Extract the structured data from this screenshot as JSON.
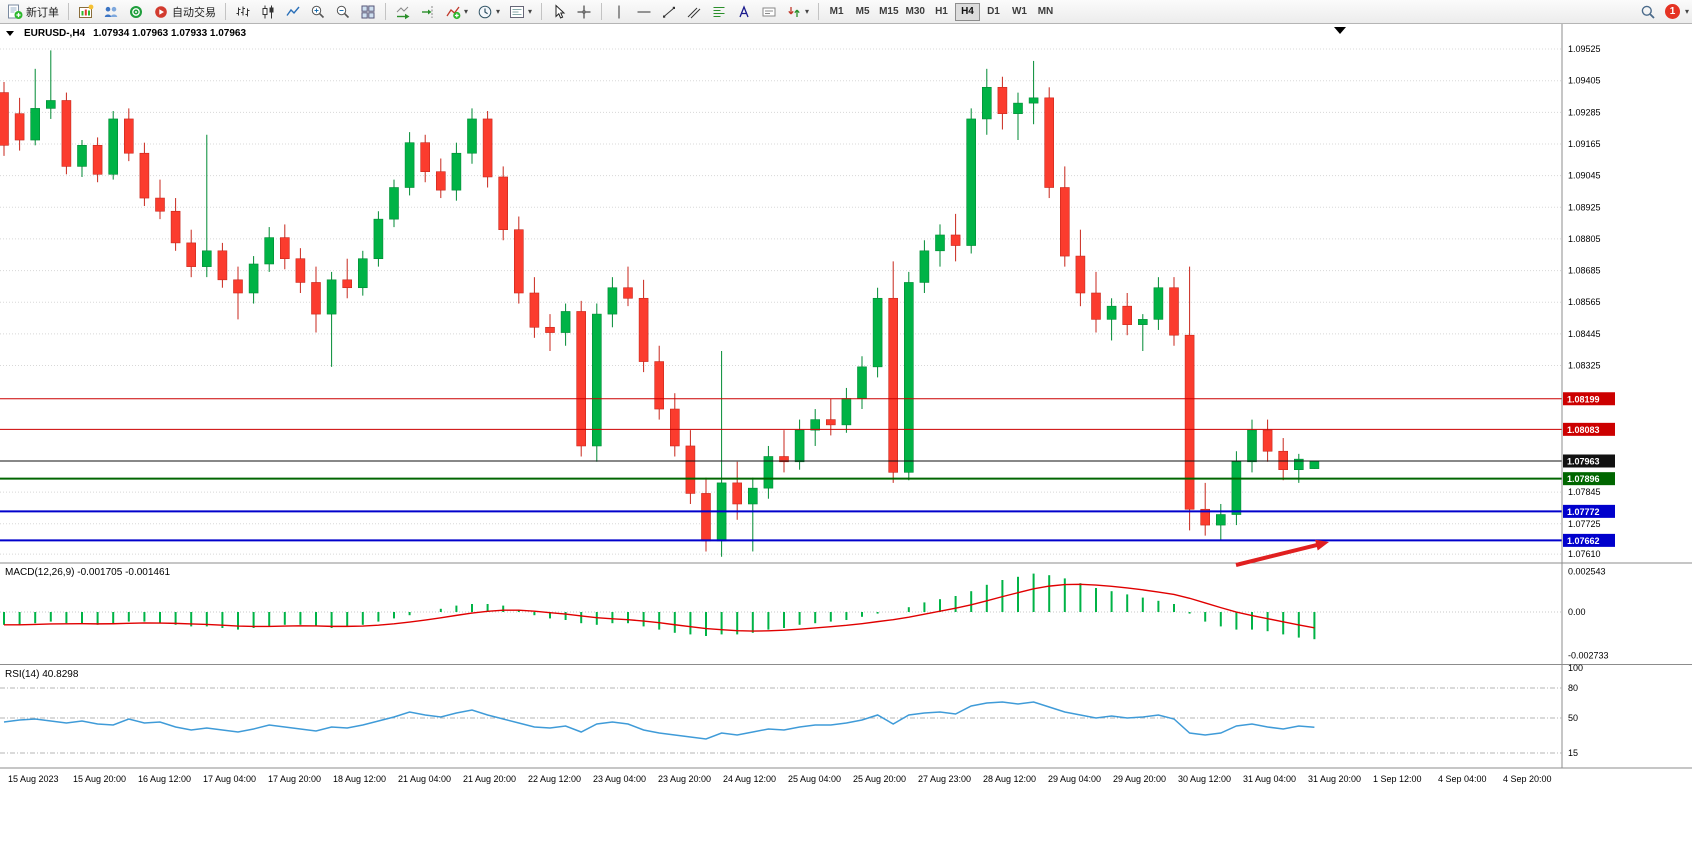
{
  "icons": {
    "caret": "▾"
  },
  "toolbar": {
    "new_order": "新订单",
    "auto_trading": "自动交易",
    "timeframes": [
      "M1",
      "M5",
      "M15",
      "M30",
      "H1",
      "H4",
      "D1",
      "W1",
      "MN"
    ],
    "active_timeframe": "H4",
    "notification_badge": "1"
  },
  "chart": {
    "symbol_period": "EURUSD-,H4",
    "ohlc": "1.07934 1.07963 1.07933 1.07963",
    "macd_label": "MACD(12,26,9) -0.001705 -0.001461",
    "rsi_label": "RSI(14) 40.8298"
  },
  "chart_data": {
    "type": "candlestick",
    "symbol": "EURUSD-",
    "period": "H4",
    "current_bar": {
      "open": "1.07934",
      "high": "1.07963",
      "low": "1.07933",
      "close": "1.07963"
    },
    "colors": {
      "up": "#00b346",
      "up_border": "#008a34",
      "down": "#fb3c2e",
      "down_border": "#c8271c",
      "macd_histogram": "#00b346",
      "macd_signal": "#e00000",
      "rsi_line": "#3f9bd8",
      "annotation": "#e02020",
      "level_red": "#cc0000",
      "level_green": "#006600",
      "level_blue": "#0000cc",
      "level_black": "#111111"
    },
    "price_axis": [
      "1.09525",
      "1.09405",
      "1.09285",
      "1.09165",
      "1.09045",
      "1.08925",
      "1.08805",
      "1.08685",
      "1.08565",
      "1.08445",
      "1.08325",
      "1.07845",
      "1.07725",
      "1.07610"
    ],
    "levels": [
      {
        "label": "1.08199",
        "value": 1.08199,
        "color": "#cc0000",
        "width": 1
      },
      {
        "label": "1.08083",
        "value": 1.08083,
        "color": "#cc0000",
        "width": 1
      },
      {
        "label": "1.07963",
        "value": 1.07963,
        "color": "#111111",
        "width": 1
      },
      {
        "label": "1.07896",
        "value": 1.07896,
        "color": "#006600",
        "width": 2
      },
      {
        "label": "1.07772",
        "value": 1.07772,
        "color": "#0000cc",
        "width": 2
      },
      {
        "label": "1.07662",
        "value": 1.07662,
        "color": "#0000cc",
        "width": 2
      }
    ],
    "candles": [
      [
        1.0936,
        1.094,
        1.0912,
        1.0916
      ],
      [
        1.0928,
        1.0934,
        1.0914,
        1.0918
      ],
      [
        1.0918,
        1.0945,
        1.0916,
        1.093
      ],
      [
        1.093,
        1.0952,
        1.0926,
        1.0933
      ],
      [
        1.0933,
        1.0936,
        1.0905,
        1.0908
      ],
      [
        1.0908,
        1.0918,
        1.0904,
        1.0916
      ],
      [
        1.0916,
        1.0919,
        1.0902,
        1.0905
      ],
      [
        1.0905,
        1.0929,
        1.0903,
        1.0926
      ],
      [
        1.0926,
        1.093,
        1.091,
        1.0913
      ],
      [
        1.0913,
        1.0917,
        1.0893,
        1.0896
      ],
      [
        1.0896,
        1.0903,
        1.0888,
        1.0891
      ],
      [
        1.0891,
        1.0896,
        1.0876,
        1.0879
      ],
      [
        1.0879,
        1.0884,
        1.0866,
        1.087
      ],
      [
        1.087,
        1.092,
        1.0866,
        1.0876
      ],
      [
        1.0876,
        1.0879,
        1.0862,
        1.0865
      ],
      [
        1.0865,
        1.087,
        1.085,
        1.086
      ],
      [
        1.086,
        1.0874,
        1.0856,
        1.0871
      ],
      [
        1.0871,
        1.0885,
        1.0868,
        1.0881
      ],
      [
        1.0881,
        1.0886,
        1.0869,
        1.0873
      ],
      [
        1.0873,
        1.0877,
        1.086,
        1.0864
      ],
      [
        1.0864,
        1.087,
        1.0845,
        1.0852
      ],
      [
        1.0852,
        1.0868,
        1.0832,
        1.0865
      ],
      [
        1.0865,
        1.0873,
        1.0858,
        1.0862
      ],
      [
        1.0862,
        1.0876,
        1.0859,
        1.0873
      ],
      [
        1.0873,
        1.0891,
        1.087,
        1.0888
      ],
      [
        1.0888,
        1.0903,
        1.0885,
        1.09
      ],
      [
        1.09,
        1.0921,
        1.0897,
        1.0917
      ],
      [
        1.0917,
        1.092,
        1.0902,
        1.0906
      ],
      [
        1.0906,
        1.0911,
        1.0896,
        1.0899
      ],
      [
        1.0899,
        1.0917,
        1.0895,
        1.0913
      ],
      [
        1.0913,
        1.093,
        1.0909,
        1.0926
      ],
      [
        1.0926,
        1.0929,
        1.09,
        1.0904
      ],
      [
        1.0904,
        1.0908,
        1.088,
        1.0884
      ],
      [
        1.0884,
        1.0889,
        1.0856,
        1.086
      ],
      [
        1.086,
        1.0866,
        1.0843,
        1.0847
      ],
      [
        1.0847,
        1.0852,
        1.0838,
        1.0845
      ],
      [
        1.0845,
        1.0856,
        1.084,
        1.0853
      ],
      [
        1.0853,
        1.0857,
        1.0798,
        1.0802
      ],
      [
        1.0802,
        1.0856,
        1.0796,
        1.0852
      ],
      [
        1.0852,
        1.0866,
        1.0847,
        1.0862
      ],
      [
        1.0862,
        1.087,
        1.0855,
        1.0858
      ],
      [
        1.0858,
        1.0865,
        1.083,
        1.0834
      ],
      [
        1.0834,
        1.084,
        1.0812,
        1.0816
      ],
      [
        1.0816,
        1.0822,
        1.0798,
        1.0802
      ],
      [
        1.0802,
        1.0808,
        1.078,
        1.0784
      ],
      [
        1.0784,
        1.079,
        1.0762,
        1.0766
      ],
      [
        1.0766,
        1.0838,
        1.076,
        1.0788
      ],
      [
        1.0788,
        1.0796,
        1.0774,
        1.078
      ],
      [
        1.078,
        1.079,
        1.0762,
        1.0786
      ],
      [
        1.0786,
        1.0802,
        1.0782,
        1.0798
      ],
      [
        1.0798,
        1.0808,
        1.0792,
        1.0796
      ],
      [
        1.0796,
        1.0812,
        1.0793,
        1.0808
      ],
      [
        1.0808,
        1.0816,
        1.0802,
        1.0812
      ],
      [
        1.0812,
        1.082,
        1.0806,
        1.081
      ],
      [
        1.081,
        1.0824,
        1.0807,
        1.082
      ],
      [
        1.082,
        1.0836,
        1.0816,
        1.0832
      ],
      [
        1.0832,
        1.0862,
        1.0828,
        1.0858
      ],
      [
        1.0858,
        1.0872,
        1.0788,
        1.0792
      ],
      [
        1.0792,
        1.0868,
        1.0789,
        1.0864
      ],
      [
        1.0864,
        1.088,
        1.086,
        1.0876
      ],
      [
        1.0876,
        1.0886,
        1.087,
        1.0882
      ],
      [
        1.0882,
        1.089,
        1.0872,
        1.0878
      ],
      [
        1.0878,
        1.093,
        1.0875,
        1.0926
      ],
      [
        1.0926,
        1.0945,
        1.092,
        1.0938
      ],
      [
        1.0938,
        1.0942,
        1.0922,
        1.0928
      ],
      [
        1.0928,
        1.0936,
        1.0918,
        1.0932
      ],
      [
        1.0932,
        1.0948,
        1.0924,
        1.0934
      ],
      [
        1.0934,
        1.0938,
        1.0896,
        1.09
      ],
      [
        1.09,
        1.0908,
        1.087,
        1.0874
      ],
      [
        1.0874,
        1.0884,
        1.0855,
        1.086
      ],
      [
        1.086,
        1.0868,
        1.0845,
        1.085
      ],
      [
        1.085,
        1.0858,
        1.0842,
        1.0855
      ],
      [
        1.0855,
        1.086,
        1.0844,
        1.0848
      ],
      [
        1.0848,
        1.0852,
        1.0838,
        1.085
      ],
      [
        1.085,
        1.0866,
        1.0846,
        1.0862
      ],
      [
        1.0862,
        1.0866,
        1.084,
        1.0844
      ],
      [
        1.0844,
        1.087,
        1.077,
        1.0778
      ],
      [
        1.0778,
        1.0788,
        1.0768,
        1.0772
      ],
      [
        1.0772,
        1.078,
        1.0766,
        1.0776
      ],
      [
        1.0776,
        1.08,
        1.0772,
        1.0796
      ],
      [
        1.0796,
        1.0812,
        1.0792,
        1.0808
      ],
      [
        1.0808,
        1.0812,
        1.0796,
        1.08
      ],
      [
        1.08,
        1.0805,
        1.0789,
        1.0793
      ],
      [
        1.0793,
        1.0799,
        1.0788,
        1.0797
      ],
      [
        1.07934,
        1.07963,
        1.07933,
        1.07963
      ]
    ],
    "macd": {
      "params": "12,26,9",
      "value": "-0.001705",
      "signal_value": "-0.001461",
      "scale": [
        "0.002543",
        "0.00",
        "-0.002733"
      ],
      "histogram": [
        -0.0008,
        -0.0008,
        -0.0007,
        -0.0006,
        -0.0007,
        -0.0007,
        -0.0008,
        -0.0007,
        -0.0006,
        -0.0006,
        -0.0007,
        -0.0008,
        -0.0009,
        -0.0009,
        -0.001,
        -0.0011,
        -0.001,
        -0.0009,
        -0.0008,
        -0.0008,
        -0.0009,
        -0.001,
        -0.0009,
        -0.0008,
        -0.0006,
        -0.0004,
        -0.0002,
        0.0,
        0.0002,
        0.0004,
        0.0005,
        0.0005,
        0.0004,
        0.0001,
        -0.0002,
        -0.0004,
        -0.0005,
        -0.0007,
        -0.0008,
        -0.0007,
        -0.0007,
        -0.0009,
        -0.0011,
        -0.0013,
        -0.0014,
        -0.0015,
        -0.0014,
        -0.0014,
        -0.0013,
        -0.0011,
        -0.001,
        -0.0008,
        -0.0007,
        -0.0006,
        -0.0005,
        -0.0003,
        -0.0001,
        0.0,
        0.0003,
        0.0006,
        0.0008,
        0.001,
        0.0013,
        0.0017,
        0.002,
        0.0022,
        0.0024,
        0.0023,
        0.0021,
        0.0018,
        0.0015,
        0.0013,
        0.0011,
        0.0009,
        0.0007,
        0.0005,
        -0.0001,
        -0.0006,
        -0.0009,
        -0.0011,
        -0.0011,
        -0.0012,
        -0.0014,
        -0.0016,
        -0.0017
      ]
    },
    "rsi": {
      "period": "14",
      "value": "40.8298",
      "scale": [
        "100",
        "80",
        "50",
        "15"
      ],
      "values": [
        46,
        48,
        49,
        47,
        45,
        47,
        44,
        43,
        49,
        45,
        46,
        41,
        38,
        40,
        38,
        36,
        39,
        43,
        41,
        39,
        37,
        41,
        40,
        43,
        47,
        51,
        56,
        53,
        51,
        55,
        58,
        53,
        49,
        45,
        41,
        40,
        42,
        36,
        44,
        46,
        44,
        38,
        35,
        33,
        31,
        29,
        35,
        33,
        36,
        39,
        38,
        41,
        43,
        43,
        45,
        48,
        53,
        44,
        53,
        55,
        56,
        54,
        62,
        65,
        66,
        64,
        66,
        61,
        56,
        53,
        50,
        52,
        50,
        51,
        53,
        49,
        35,
        33,
        35,
        42,
        44,
        41,
        39,
        42,
        40.8
      ]
    },
    "time_labels": [
      "15 Aug 2023",
      "15 Aug 20:00",
      "16 Aug 12:00",
      "17 Aug 04:00",
      "17 Aug 20:00",
      "18 Aug 12:00",
      "21 Aug 04:00",
      "21 Aug 20:00",
      "22 Aug 12:00",
      "23 Aug 04:00",
      "23 Aug 20:00",
      "24 Aug 12:00",
      "25 Aug 04:00",
      "25 Aug 20:00",
      "27 Aug 23:00",
      "28 Aug 12:00",
      "29 Aug 04:00",
      "29 Aug 20:00",
      "30 Aug 12:00",
      "31 Aug 04:00",
      "31 Aug 20:00",
      "1 Sep 12:00",
      "4 Sep 04:00",
      "4 Sep 20:00"
    ],
    "annotation_arrow": {
      "from": [
        1236,
        541
      ],
      "to": [
        1329,
        518
      ],
      "color": "#e02020"
    }
  }
}
